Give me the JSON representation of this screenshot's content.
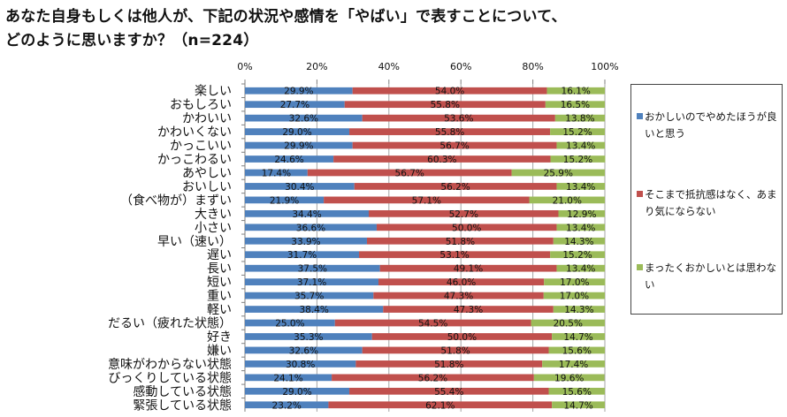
{
  "title": {
    "line1": "あなた自身もしくは他人が、下記の状況や感情を「やばい」で表すことについて、",
    "line2": "どのように思いますか？（n=224）"
  },
  "colors": {
    "series1": "#4f81bd",
    "series2": "#c0504d",
    "series3": "#9bbb59"
  },
  "chart_data": {
    "type": "bar",
    "orientation": "horizontal",
    "stacked": "percent",
    "xlim": [
      0,
      100
    ],
    "xticks": [
      "0%",
      "20%",
      "40%",
      "60%",
      "80%",
      "100%"
    ],
    "grid": true,
    "legend_position": "right",
    "categories": [
      "楽しい",
      "おもしろい",
      "かわいい",
      "かわいくない",
      "かっこいい",
      "かっこわるい",
      "あやしい",
      "おいしい",
      "（食べ物が）まずい",
      "大きい",
      "小さい",
      "早い（速い）",
      "遅い",
      "長い",
      "短い",
      "重い",
      "軽い",
      "だるい（疲れた状態）",
      "好き",
      "嫌い",
      "意味がわからない状態",
      "びっくりしている状態",
      "感動している状態",
      "緊張している状態"
    ],
    "series": [
      {
        "name": "おかしいのでやめたほうが良いと思う",
        "values": [
          29.9,
          27.7,
          32.6,
          29.0,
          29.9,
          24.6,
          17.4,
          30.4,
          21.9,
          34.4,
          36.6,
          33.9,
          31.7,
          37.5,
          37.1,
          35.7,
          38.4,
          25.0,
          35.3,
          32.6,
          30.8,
          24.1,
          29.0,
          23.2
        ]
      },
      {
        "name": "そこまで抵抗感はなく、あまり気にならない",
        "values": [
          54.0,
          55.8,
          53.6,
          55.8,
          56.7,
          60.3,
          56.7,
          56.2,
          57.1,
          52.7,
          50.0,
          51.8,
          53.1,
          49.1,
          46.0,
          47.3,
          47.3,
          54.5,
          50.0,
          51.8,
          51.8,
          56.2,
          55.4,
          62.1
        ]
      },
      {
        "name": "まったくおかしいとは思わない",
        "values": [
          16.1,
          16.5,
          13.8,
          15.2,
          13.4,
          15.2,
          25.9,
          13.4,
          21.0,
          12.9,
          13.4,
          14.3,
          15.2,
          13.4,
          17.0,
          17.0,
          14.3,
          20.5,
          14.7,
          15.6,
          17.4,
          19.6,
          15.6,
          14.7
        ]
      }
    ]
  }
}
